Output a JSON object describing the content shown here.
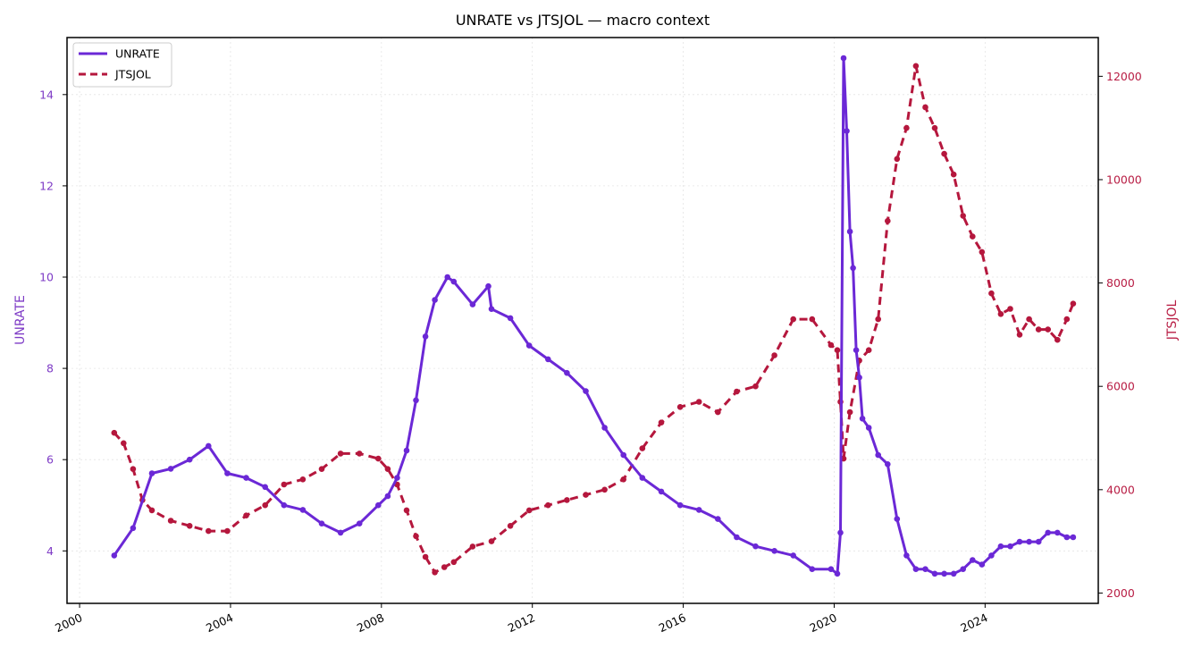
{
  "chart_data": {
    "type": "line",
    "title": "UNRATE vs JTSJOL — macro context",
    "xlabel": "",
    "x_range": [
      "1999-09-01",
      "2027-01-01"
    ],
    "x_ticks": [
      "2000",
      "2004",
      "2008",
      "2012",
      "2016",
      "2020",
      "2024"
    ],
    "grid": true,
    "legend_position": "top-left",
    "axes": {
      "left": {
        "label": "UNRATE",
        "color": "#7e3bc6",
        "ylim": [
          2.85,
          15.25
        ],
        "ticks": [
          "4",
          "6",
          "8",
          "10",
          "12",
          "14"
        ]
      },
      "right": {
        "label": "JTSJOL",
        "color": "#b81d44",
        "ylim": [
          1800,
          12750
        ],
        "ticks": [
          "2000",
          "4000",
          "6000",
          "8000",
          "10000",
          "12000"
        ]
      }
    },
    "series": [
      {
        "name": "UNRATE",
        "axis": "left",
        "color": "#6b28d6",
        "style": "solid",
        "x": [
          "2000-12",
          "2001-06",
          "2001-12",
          "2002-06",
          "2002-12",
          "2003-06",
          "2003-12",
          "2004-06",
          "2004-12",
          "2005-06",
          "2005-12",
          "2006-06",
          "2006-12",
          "2007-06",
          "2007-12",
          "2008-03",
          "2008-06",
          "2008-09",
          "2008-12",
          "2009-03",
          "2009-06",
          "2009-10",
          "2009-12",
          "2010-06",
          "2010-11",
          "2010-12",
          "2011-06",
          "2011-12",
          "2012-06",
          "2012-12",
          "2013-06",
          "2013-12",
          "2014-06",
          "2014-12",
          "2015-06",
          "2015-12",
          "2016-06",
          "2016-12",
          "2017-06",
          "2017-12",
          "2018-06",
          "2018-12",
          "2019-06",
          "2019-12",
          "2020-02",
          "2020-03",
          "2020-04",
          "2020-05",
          "2020-06",
          "2020-07",
          "2020-08",
          "2020-09",
          "2020-10",
          "2020-12",
          "2021-03",
          "2021-06",
          "2021-09",
          "2021-12",
          "2022-03",
          "2022-06",
          "2022-09",
          "2022-12",
          "2023-03",
          "2023-06",
          "2023-09",
          "2023-12",
          "2024-03",
          "2024-06",
          "2024-09",
          "2024-12",
          "2025-03",
          "2025-06",
          "2025-09",
          "2025-12",
          "2026-03",
          "2026-05"
        ],
        "values": [
          3.9,
          4.5,
          5.7,
          5.8,
          6.0,
          6.3,
          5.7,
          5.6,
          5.4,
          5.0,
          4.9,
          4.6,
          4.4,
          4.6,
          5.0,
          5.2,
          5.6,
          6.2,
          7.3,
          8.7,
          9.5,
          10.0,
          9.9,
          9.4,
          9.8,
          9.3,
          9.1,
          8.5,
          8.2,
          7.9,
          7.5,
          6.7,
          6.1,
          5.6,
          5.3,
          5.0,
          4.9,
          4.7,
          4.3,
          4.1,
          4.0,
          3.9,
          3.6,
          3.6,
          3.5,
          4.4,
          14.8,
          13.2,
          11.0,
          10.2,
          8.4,
          7.8,
          6.9,
          6.7,
          6.1,
          5.9,
          4.7,
          3.9,
          3.6,
          3.6,
          3.5,
          3.5,
          3.5,
          3.6,
          3.8,
          3.7,
          3.9,
          4.1,
          4.1,
          4.2,
          4.2,
          4.2,
          4.4,
          4.4,
          4.3,
          4.3
        ]
      },
      {
        "name": "JTSJOL",
        "axis": "right",
        "color": "#b5173d",
        "style": "dashed",
        "x": [
          "2000-12",
          "2001-03",
          "2001-06",
          "2001-09",
          "2001-12",
          "2002-06",
          "2002-12",
          "2003-06",
          "2003-12",
          "2004-06",
          "2004-12",
          "2005-06",
          "2005-12",
          "2006-06",
          "2006-12",
          "2007-06",
          "2007-12",
          "2008-03",
          "2008-06",
          "2008-09",
          "2008-12",
          "2009-03",
          "2009-06",
          "2009-09",
          "2009-12",
          "2010-06",
          "2010-12",
          "2011-06",
          "2011-12",
          "2012-06",
          "2012-12",
          "2013-06",
          "2013-12",
          "2014-06",
          "2014-12",
          "2015-06",
          "2015-12",
          "2016-06",
          "2016-12",
          "2017-06",
          "2017-12",
          "2018-06",
          "2018-12",
          "2019-06",
          "2019-12",
          "2020-02",
          "2020-03",
          "2020-04",
          "2020-06",
          "2020-09",
          "2020-12",
          "2021-03",
          "2021-06",
          "2021-09",
          "2021-12",
          "2022-03",
          "2022-06",
          "2022-09",
          "2022-12",
          "2023-03",
          "2023-06",
          "2023-09",
          "2023-12",
          "2024-03",
          "2024-06",
          "2024-09",
          "2024-12",
          "2025-03",
          "2025-06",
          "2025-09",
          "2025-12",
          "2026-03",
          "2026-05"
        ],
        "values": [
          5100,
          4900,
          4400,
          3800,
          3600,
          3400,
          3300,
          3200,
          3200,
          3500,
          3700,
          4100,
          4200,
          4400,
          4700,
          4700,
          4600,
          4400,
          4100,
          3600,
          3100,
          2700,
          2400,
          2500,
          2600,
          2900,
          3000,
          3300,
          3600,
          3700,
          3800,
          3900,
          4000,
          4200,
          4800,
          5300,
          5600,
          5700,
          5500,
          5900,
          6000,
          6600,
          7300,
          7300,
          6800,
          6700,
          5700,
          4600,
          5500,
          6500,
          6700,
          7300,
          9200,
          10400,
          11000,
          12200,
          11400,
          11000,
          10500,
          10100,
          9300,
          8900,
          8600,
          7800,
          7400,
          7500,
          7000,
          7300,
          7100,
          7100,
          6900,
          7300,
          7600
        ]
      }
    ]
  }
}
